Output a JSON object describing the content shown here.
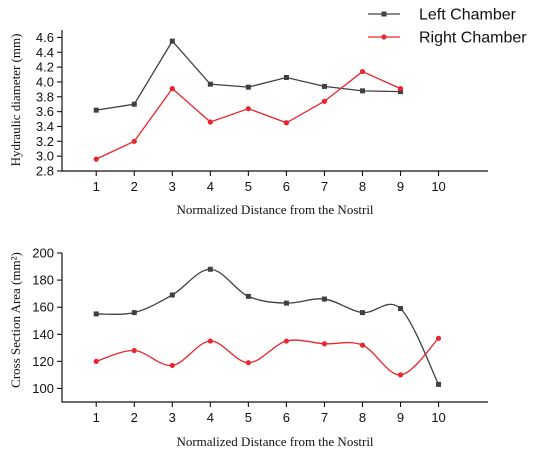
{
  "legend": {
    "items": [
      {
        "label": "Left Chamber",
        "color": "#404040",
        "marker": "square"
      },
      {
        "label": "Right Chamber",
        "color": "#e8262e",
        "marker": "circle"
      }
    ]
  },
  "chart_data": [
    {
      "type": "line",
      "title": "",
      "xlabel": "Normalized Distance from the Nostril",
      "ylabel": "Hydraulic diameter (mm)",
      "x": [
        1,
        2,
        3,
        4,
        5,
        6,
        7,
        8,
        9
      ],
      "xticks": [
        1,
        2,
        3,
        4,
        5,
        6,
        7,
        8,
        9,
        10
      ],
      "xlim": [
        0.1,
        11.3
      ],
      "yticks": [
        2.8,
        3.0,
        3.2,
        3.4,
        3.6,
        3.8,
        4.0,
        4.2,
        4.4,
        4.6
      ],
      "ytick_labels": [
        "2.8",
        "3.0",
        "3.2",
        "3.4",
        "3.6",
        "3.8",
        "4.0",
        "4.2",
        "4.4",
        "4.6"
      ],
      "ylim": [
        2.8,
        4.7
      ],
      "smooth": false,
      "legend": "top-right",
      "series": [
        {
          "name": "Left Chamber",
          "color": "#404040",
          "marker": "square",
          "values": [
            3.62,
            3.7,
            4.55,
            3.97,
            3.93,
            4.06,
            3.94,
            3.88,
            3.87
          ]
        },
        {
          "name": "Right Chamber",
          "color": "#e8262e",
          "marker": "circle",
          "values": [
            2.96,
            3.2,
            3.91,
            3.46,
            3.64,
            3.45,
            3.74,
            4.14,
            3.91
          ]
        }
      ]
    },
    {
      "type": "line",
      "title": "",
      "xlabel": "Normalized Distance from the Nostril",
      "ylabel": "Cross Section Area (mm²)",
      "x": [
        1,
        2,
        3,
        4,
        5,
        6,
        7,
        8,
        9,
        10
      ],
      "xticks": [
        1,
        2,
        3,
        4,
        5,
        6,
        7,
        8,
        9,
        10
      ],
      "xlim": [
        0.1,
        11.3
      ],
      "yticks": [
        100,
        120,
        140,
        160,
        180,
        200
      ],
      "ytick_labels": [
        "100",
        "120",
        "140",
        "160",
        "180",
        "200"
      ],
      "ylim": [
        90,
        200
      ],
      "smooth": true,
      "series": [
        {
          "name": "Left Chamber",
          "color": "#404040",
          "marker": "square",
          "values": [
            155,
            156,
            169,
            188,
            168,
            163,
            166,
            156,
            159,
            103
          ]
        },
        {
          "name": "Right Chamber",
          "color": "#e8262e",
          "marker": "circle",
          "values": [
            120,
            128,
            117,
            135,
            119,
            135,
            133,
            132,
            110,
            137
          ]
        }
      ]
    }
  ]
}
